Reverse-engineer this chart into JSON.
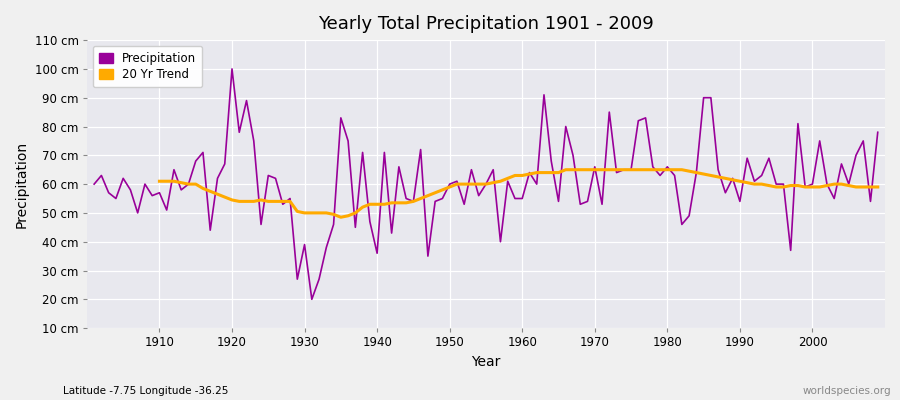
{
  "title": "Yearly Total Precipitation 1901 - 2009",
  "xlabel": "Year",
  "ylabel": "Precipitation",
  "subtitle": "Latitude -7.75 Longitude -36.25",
  "watermark": "worldspecies.org",
  "bg_color": "#f0f0f0",
  "plot_bg_color": "#e8e8ee",
  "precip_color": "#990099",
  "trend_color": "#ffaa00",
  "ylim_min": 10,
  "ylim_max": 110,
  "yticks": [
    10,
    20,
    30,
    40,
    50,
    60,
    70,
    80,
    90,
    100,
    110
  ],
  "ytick_labels": [
    "10 cm",
    "20 cm",
    "30 cm",
    "40 cm",
    "50 cm",
    "60 cm",
    "70 cm",
    "80 cm",
    "90 cm",
    "100 cm",
    "110 cm"
  ],
  "xticks": [
    1910,
    1920,
    1930,
    1940,
    1950,
    1960,
    1970,
    1980,
    1990,
    2000
  ],
  "years": [
    1901,
    1902,
    1903,
    1904,
    1905,
    1906,
    1907,
    1908,
    1909,
    1910,
    1911,
    1912,
    1913,
    1914,
    1915,
    1916,
    1917,
    1918,
    1919,
    1920,
    1921,
    1922,
    1923,
    1924,
    1925,
    1926,
    1927,
    1928,
    1929,
    1930,
    1931,
    1932,
    1933,
    1934,
    1935,
    1936,
    1937,
    1938,
    1939,
    1940,
    1941,
    1942,
    1943,
    1944,
    1945,
    1946,
    1947,
    1948,
    1949,
    1950,
    1951,
    1952,
    1953,
    1954,
    1955,
    1956,
    1957,
    1958,
    1959,
    1960,
    1961,
    1962,
    1963,
    1964,
    1965,
    1966,
    1967,
    1968,
    1969,
    1970,
    1971,
    1972,
    1973,
    1974,
    1975,
    1976,
    1977,
    1978,
    1979,
    1980,
    1981,
    1982,
    1983,
    1984,
    1985,
    1986,
    1987,
    1988,
    1989,
    1990,
    1991,
    1992,
    1993,
    1994,
    1995,
    1996,
    1997,
    1998,
    1999,
    2000,
    2001,
    2002,
    2003,
    2004,
    2005,
    2006,
    2007,
    2008,
    2009
  ],
  "precip": [
    60,
    63,
    57,
    55,
    62,
    58,
    50,
    60,
    56,
    57,
    51,
    65,
    58,
    60,
    68,
    71,
    44,
    62,
    67,
    100,
    78,
    89,
    75,
    46,
    63,
    62,
    53,
    55,
    27,
    39,
    20,
    27,
    38,
    46,
    83,
    75,
    45,
    71,
    47,
    36,
    71,
    43,
    66,
    55,
    54,
    72,
    35,
    54,
    55,
    60,
    61,
    53,
    65,
    56,
    60,
    65,
    40,
    61,
    55,
    55,
    64,
    60,
    91,
    68,
    54,
    80,
    70,
    53,
    54,
    66,
    53,
    85,
    64,
    65,
    65,
    82,
    83,
    66,
    63,
    66,
    63,
    46,
    49,
    64,
    90,
    90,
    65,
    57,
    62,
    54,
    69,
    61,
    63,
    69,
    60,
    60,
    37,
    81,
    59,
    60,
    75,
    60,
    55,
    67,
    60,
    70,
    75,
    54,
    78
  ],
  "trend_start_year": 1910,
  "trend": [
    61.0,
    61.0,
    61.0,
    60.5,
    60.0,
    60.0,
    58.5,
    57.5,
    56.5,
    55.5,
    54.5,
    54.0,
    54.0,
    54.0,
    54.5,
    54.0,
    54.0,
    54.0,
    54.0,
    50.5,
    50.0,
    50.0,
    50.0,
    50.0,
    49.5,
    48.5,
    49.0,
    50.0,
    52.0,
    53.0,
    53.0,
    53.0,
    53.5,
    53.5,
    53.5,
    54.0,
    55.0,
    56.0,
    57.0,
    58.0,
    59.0,
    60.0,
    60.0,
    60.0,
    60.0,
    60.0,
    60.5,
    61.0,
    62.0,
    63.0,
    63.0,
    63.5,
    64.0,
    64.0,
    64.0,
    64.0,
    65.0,
    65.0,
    65.0,
    65.0,
    65.0,
    65.0,
    65.0,
    65.0,
    65.0,
    65.0,
    65.0,
    65.0,
    65.0,
    65.0,
    65.0,
    65.0,
    65.0,
    64.5,
    64.0,
    63.5,
    63.0,
    62.5,
    62.0,
    61.5,
    61.0,
    60.5,
    60.0,
    60.0,
    59.5,
    59.0,
    59.0,
    59.5,
    59.5,
    59.0,
    59.0,
    59.0,
    59.5,
    60.0,
    60.0,
    59.5,
    59.0,
    59.0,
    59.0,
    59.0
  ]
}
